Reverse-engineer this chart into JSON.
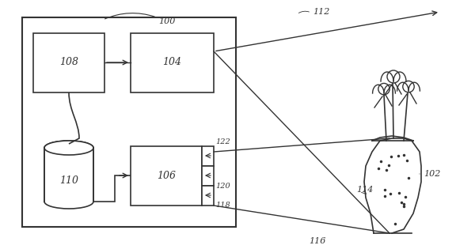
{
  "bg_color": "#ffffff",
  "line_color": "#333333",
  "box_color": "#ffffff",
  "box_edge": "#333333",
  "label_108": "108",
  "label_104": "104",
  "label_106": "106",
  "label_110": "110",
  "label_100": "100",
  "label_102": "102",
  "label_112": "112",
  "label_114": "114",
  "label_116": "116",
  "label_118": "118",
  "label_120": "120",
  "label_122": "122"
}
